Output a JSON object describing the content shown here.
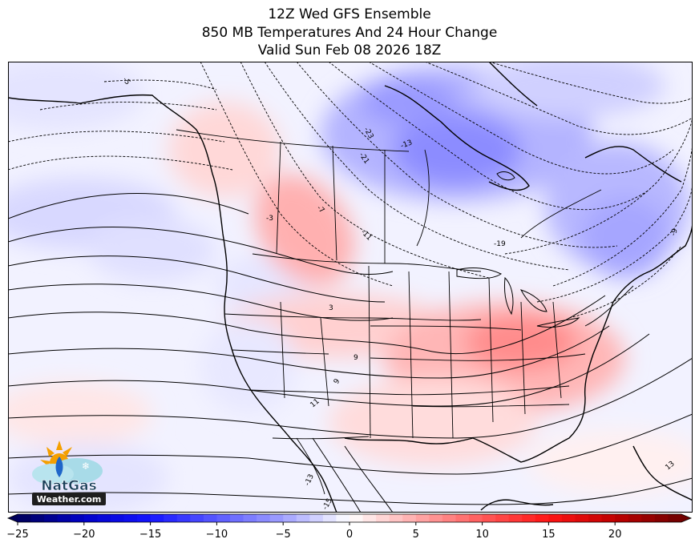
{
  "title": {
    "line1": "12Z Wed GFS Ensemble",
    "line2": "850 MB Temperatures And 24 Hour Change",
    "line3": "Valid Sun Feb 08 2026 18Z"
  },
  "logo": {
    "top": "NatGas",
    "bottom": "Weather.com",
    "icon": "sun-snowflake-flame-icon"
  },
  "contour_labels": [
    "-23",
    "-21",
    "-19",
    "-13",
    "-11",
    "-7",
    "-3",
    "3",
    "9",
    "9",
    "11",
    "13",
    "-13",
    "-15",
    "-9",
    "-5"
  ],
  "colorbar": {
    "min": -25,
    "max": 25,
    "step": 1,
    "ticks": [
      "−25",
      "−20",
      "−15",
      "−10",
      "−5",
      "0",
      "5",
      "10",
      "15",
      "20"
    ],
    "tick_values": [
      -25,
      -20,
      -15,
      -10,
      -5,
      0,
      5,
      10,
      15,
      20
    ]
  },
  "colors": {
    "cold_extreme": "#00005a",
    "cold": "#3030ff",
    "cool": "#c8c8ff",
    "neutral": "#ffffff",
    "warm": "#ffb4b4",
    "hot": "#ff2020",
    "hot_extreme": "#700000"
  }
}
